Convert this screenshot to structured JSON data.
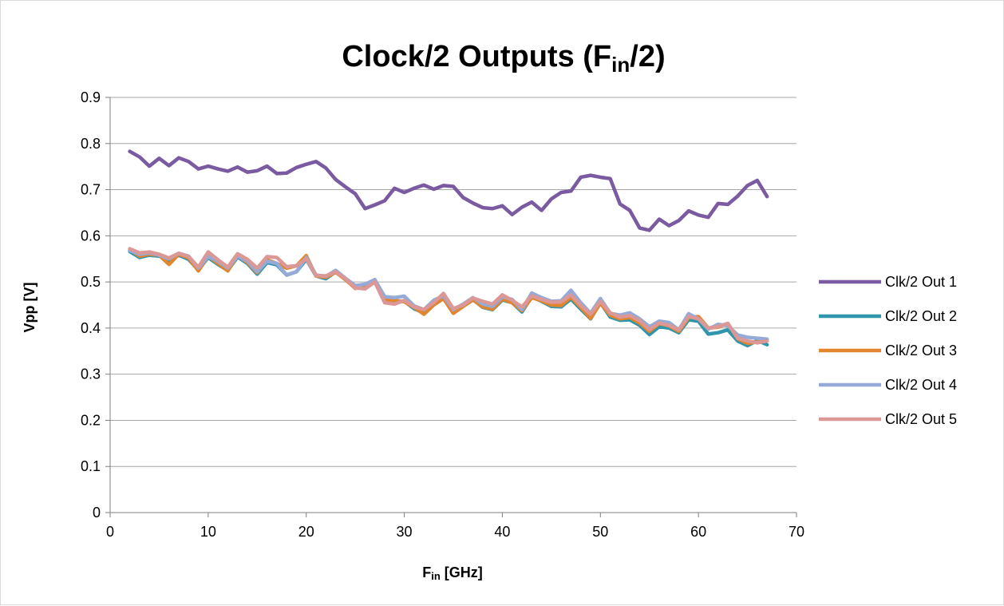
{
  "chart_data": {
    "type": "line",
    "title": {
      "main": "Clock/2 Outputs (F",
      "sub": "in",
      "suffix": "/2)"
    },
    "xlabel": {
      "main": "F",
      "sub": "in",
      "suffix": " [GHz]"
    },
    "ylabel": "Vpp [V]",
    "xlim": [
      0,
      70
    ],
    "ylim": [
      0,
      0.9
    ],
    "x_ticks": [
      0,
      10,
      20,
      30,
      40,
      50,
      60,
      70
    ],
    "y_ticks": [
      0,
      0.1,
      0.2,
      0.3,
      0.4,
      0.5,
      0.6,
      0.7,
      0.8,
      0.9
    ],
    "grid": true,
    "legend_position": "right",
    "x": [
      2,
      3,
      4,
      5,
      6,
      7,
      8,
      9,
      10,
      11,
      12,
      13,
      14,
      15,
      16,
      17,
      18,
      19,
      20,
      21,
      22,
      23,
      24,
      25,
      26,
      27,
      28,
      29,
      30,
      31,
      32,
      33,
      34,
      35,
      36,
      37,
      38,
      39,
      40,
      41,
      42,
      43,
      44,
      45,
      46,
      47,
      48,
      49,
      50,
      51,
      52,
      53,
      54,
      55,
      56,
      57,
      58,
      59,
      60,
      61,
      62,
      63,
      64,
      65,
      66,
      67
    ],
    "series": [
      {
        "name": "Clk/2 Out 1",
        "color": "#7a5aa0",
        "values": [
          0.783,
          0.771,
          0.751,
          0.768,
          0.752,
          0.769,
          0.761,
          0.745,
          0.751,
          0.745,
          0.74,
          0.749,
          0.738,
          0.741,
          0.751,
          0.735,
          0.736,
          0.748,
          0.755,
          0.761,
          0.747,
          0.722,
          0.706,
          0.691,
          0.659,
          0.667,
          0.676,
          0.703,
          0.694,
          0.703,
          0.71,
          0.701,
          0.709,
          0.707,
          0.683,
          0.671,
          0.661,
          0.659,
          0.665,
          0.646,
          0.662,
          0.673,
          0.655,
          0.68,
          0.694,
          0.697,
          0.727,
          0.731,
          0.727,
          0.724,
          0.669,
          0.655,
          0.617,
          0.612,
          0.636,
          0.622,
          0.633,
          0.654,
          0.645,
          0.64,
          0.67,
          0.668,
          0.686,
          0.709,
          0.72,
          0.685
        ]
      },
      {
        "name": "Clk/2 Out 2",
        "color": "#2f95ab",
        "values": [
          0.566,
          0.553,
          0.558,
          0.556,
          0.547,
          0.558,
          0.549,
          0.526,
          0.553,
          0.538,
          0.525,
          0.554,
          0.54,
          0.517,
          0.542,
          0.537,
          0.515,
          0.522,
          0.549,
          0.513,
          0.507,
          0.522,
          0.505,
          0.488,
          0.49,
          0.5,
          0.459,
          0.458,
          0.458,
          0.442,
          0.433,
          0.453,
          0.465,
          0.433,
          0.45,
          0.462,
          0.445,
          0.44,
          0.461,
          0.455,
          0.435,
          0.468,
          0.458,
          0.447,
          0.446,
          0.463,
          0.441,
          0.42,
          0.455,
          0.424,
          0.417,
          0.418,
          0.406,
          0.386,
          0.403,
          0.4,
          0.39,
          0.418,
          0.415,
          0.387,
          0.39,
          0.396,
          0.372,
          0.362,
          0.373,
          0.364
        ]
      },
      {
        "name": "Clk/2 Out 3",
        "color": "#e2852f",
        "values": [
          0.57,
          0.556,
          0.56,
          0.558,
          0.538,
          0.56,
          0.552,
          0.524,
          0.556,
          0.54,
          0.524,
          0.557,
          0.542,
          0.52,
          0.548,
          0.54,
          0.53,
          0.535,
          0.557,
          0.513,
          0.51,
          0.521,
          0.505,
          0.486,
          0.492,
          0.503,
          0.462,
          0.46,
          0.457,
          0.445,
          0.43,
          0.45,
          0.464,
          0.432,
          0.447,
          0.461,
          0.446,
          0.441,
          0.463,
          0.455,
          0.438,
          0.466,
          0.459,
          0.45,
          0.449,
          0.467,
          0.445,
          0.421,
          0.454,
          0.428,
          0.42,
          0.423,
          0.411,
          0.393,
          0.41,
          0.405,
          0.393,
          0.423,
          0.425,
          0.4,
          0.402,
          0.41,
          0.377,
          0.367,
          0.37,
          0.375
        ]
      },
      {
        "name": "Clk/2 Out 4",
        "color": "#95aad6",
        "values": [
          0.568,
          0.56,
          0.563,
          0.558,
          0.55,
          0.562,
          0.556,
          0.53,
          0.555,
          0.545,
          0.53,
          0.556,
          0.545,
          0.522,
          0.545,
          0.54,
          0.515,
          0.522,
          0.553,
          0.515,
          0.512,
          0.525,
          0.508,
          0.492,
          0.495,
          0.505,
          0.468,
          0.466,
          0.469,
          0.448,
          0.44,
          0.46,
          0.47,
          0.44,
          0.452,
          0.466,
          0.452,
          0.447,
          0.468,
          0.462,
          0.44,
          0.476,
          0.466,
          0.458,
          0.459,
          0.482,
          0.455,
          0.432,
          0.464,
          0.432,
          0.428,
          0.433,
          0.42,
          0.403,
          0.415,
          0.412,
          0.396,
          0.431,
          0.42,
          0.398,
          0.408,
          0.405,
          0.385,
          0.38,
          0.378,
          0.376
        ]
      },
      {
        "name": "Clk/2 Out 5",
        "color": "#db9896",
        "values": [
          0.572,
          0.563,
          0.565,
          0.56,
          0.552,
          0.562,
          0.555,
          0.532,
          0.565,
          0.548,
          0.532,
          0.561,
          0.549,
          0.53,
          0.555,
          0.553,
          0.533,
          0.535,
          0.55,
          0.514,
          0.513,
          0.522,
          0.507,
          0.487,
          0.485,
          0.5,
          0.455,
          0.452,
          0.46,
          0.446,
          0.44,
          0.455,
          0.475,
          0.442,
          0.45,
          0.465,
          0.458,
          0.452,
          0.472,
          0.46,
          0.446,
          0.47,
          0.462,
          0.456,
          0.457,
          0.472,
          0.449,
          0.43,
          0.458,
          0.433,
          0.424,
          0.427,
          0.416,
          0.397,
          0.411,
          0.406,
          0.396,
          0.425,
          0.42,
          0.4,
          0.403,
          0.41,
          0.378,
          0.372,
          0.368,
          0.372
        ]
      }
    ]
  }
}
